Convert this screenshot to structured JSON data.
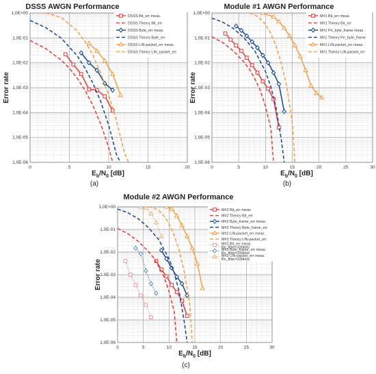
{
  "colors": {
    "red": "#e84040",
    "blue": "#1f4e8c",
    "orange": "#f5a04a",
    "grid": "#dddddd",
    "pink": "#f08080",
    "teal": "#3a7aa0",
    "tan": "#e0a060"
  },
  "chart_data": [
    {
      "type": "line",
      "title": "DSSS AWGN Performance",
      "ylabel": "Error rate",
      "xlabel_main": "E",
      "xlabel_sub1": "b",
      "xlabel_mid": "/N",
      "xlabel_sub2": "0",
      "xlabel_unit": " [dB]",
      "caption": "(a)",
      "xlim": [
        0,
        20
      ],
      "xticks": [
        0,
        5,
        10,
        15,
        20
      ],
      "yscale": "log",
      "ylim": [
        1e-06,
        1
      ],
      "yticks": [
        "1,0E-06",
        "1,0E-05",
        "1,0E-04",
        "1,0E-03",
        "1,0E-02",
        "1,0E-01",
        "1,0E+00"
      ],
      "legend_position": "top-right",
      "series": [
        {
          "name": "DSSS Bit_err meas.",
          "color": "red",
          "style": "solid",
          "marker": "square",
          "x": [
            4.5,
            5.5,
            6.5,
            7.5,
            8.5,
            9.5,
            10.5
          ],
          "y": [
            0.022,
            0.0085,
            0.0035,
            0.00085,
            0.0008,
            0.00045,
            0.00012
          ]
        },
        {
          "name": "DSSS Theory Bit_err",
          "color": "red",
          "style": "dashed",
          "marker": "none",
          "x": [
            0,
            2,
            4,
            5,
            6,
            7,
            8,
            9,
            10,
            10.5
          ],
          "y": [
            0.079,
            0.037,
            0.0125,
            0.006,
            0.0024,
            0.00077,
            0.00019,
            3.4e-05,
            3.9e-06,
            1e-06
          ]
        },
        {
          "name": "DSSS Byte_err meas.",
          "color": "blue",
          "style": "solid",
          "marker": "diamond",
          "x": [
            6.5,
            7.5,
            8.5,
            9.5,
            10.5
          ],
          "y": [
            0.025,
            0.01,
            0.005,
            0.0015,
            0.0008
          ]
        },
        {
          "name": "DSSS Theory Byte_err",
          "color": "blue",
          "style": "dashed",
          "marker": "none",
          "x": [
            0,
            2,
            4,
            6,
            7,
            8,
            9,
            10,
            11,
            11.5
          ],
          "y": [
            0.5,
            0.26,
            0.095,
            0.019,
            0.006,
            0.0015,
            0.00027,
            3.1e-05,
            2e-06,
            1e-06
          ]
        },
        {
          "name": "DSSS LIN-packet_err meas.",
          "color": "orange",
          "style": "solid",
          "marker": "triangle",
          "x": [
            7.5,
            8.5,
            9.5,
            10.5,
            11.5
          ],
          "y": [
            0.06,
            0.03,
            0.012,
            0.0035,
            0.0005
          ]
        },
        {
          "name": "DSSS Theory LIN_packet_err",
          "color": "orange",
          "style": "dashed",
          "marker": "none",
          "x": [
            2,
            4,
            6,
            7,
            8,
            9,
            10,
            11,
            12,
            12.5
          ],
          "y": [
            1,
            0.65,
            0.19,
            0.07,
            0.02,
            0.0036,
            0.0005,
            4.5e-05,
            2.5e-06,
            1e-06
          ]
        }
      ]
    },
    {
      "type": "line",
      "title": "Module #1 AWGN Performance",
      "ylabel": "Error rate",
      "xlabel_main": "E",
      "xlabel_sub1": "b",
      "xlabel_mid": "/N",
      "xlabel_sub2": "0",
      "xlabel_unit": " [dB]",
      "caption": "(b)",
      "xlim": [
        0,
        30
      ],
      "xticks": [
        0,
        5,
        10,
        15,
        20,
        25,
        30
      ],
      "yscale": "log",
      "ylim": [
        1e-06,
        1
      ],
      "yticks": [
        "1,0E-06",
        "1,0E-05",
        "1,0E-04",
        "1,0E-03",
        "1,0E-02",
        "1,0E-01",
        "1,0E+00"
      ],
      "legend_position": "top-right",
      "series": [
        {
          "name": "M#1 Bit_err meas.",
          "color": "red",
          "style": "solid",
          "marker": "square",
          "x": [
            2.5,
            3.5,
            4.5,
            5.5,
            6.5,
            7.5,
            8.5,
            9.5,
            10.5,
            11.5,
            12.5
          ],
          "y": [
            0.15,
            0.085,
            0.05,
            0.03,
            0.016,
            0.008,
            0.004,
            0.0018,
            0.0009,
            0.00035,
            2.5e-05
          ]
        },
        {
          "name": "M#1 Theory Bit_err",
          "color": "red",
          "style": "dashed",
          "marker": "none",
          "x": [
            0,
            2,
            4,
            6,
            7,
            8,
            9,
            10,
            11,
            11.5
          ],
          "y": [
            0.11,
            0.065,
            0.03,
            0.0105,
            0.0055,
            0.0023,
            0.0008,
            0.00018,
            2.3e-05,
            1e-06
          ]
        },
        {
          "name": "M#1 Pe_byte_frame meas.",
          "color": "blue",
          "style": "solid",
          "marker": "diamond",
          "x": [
            4.5,
            5.5,
            6.5,
            7.5,
            8.5,
            9.5,
            10.5,
            11.5,
            12.5,
            13.5
          ],
          "y": [
            0.3,
            0.2,
            0.12,
            0.07,
            0.04,
            0.02,
            0.01,
            0.004,
            0.0014,
            0.00011
          ]
        },
        {
          "name": "M#1 Theory Pe_byte_frame",
          "color": "blue",
          "style": "dashed",
          "marker": "none",
          "x": [
            0,
            2,
            4,
            6,
            8,
            10,
            11,
            12,
            13,
            13.5
          ],
          "y": [
            0.62,
            0.43,
            0.24,
            0.1,
            0.03,
            0.0045,
            0.0011,
            0.00015,
            7e-06,
            1e-06
          ]
        },
        {
          "name": "M#1 LIN-packet_err meas.",
          "color": "orange",
          "style": "solid",
          "marker": "triangle",
          "x": [
            9.5,
            11.5,
            12.5,
            13.5,
            14.5,
            15.5,
            16.5,
            17.5,
            18.5,
            19.5,
            20.5
          ],
          "y": [
            1,
            0.7,
            0.45,
            0.25,
            0.12,
            0.05,
            0.018,
            0.005,
            0.0012,
            0.0006,
            0.0004
          ]
        },
        {
          "name": "M#1 Theory LIN-packet_err",
          "color": "orange",
          "style": "dashed",
          "marker": "none",
          "x": [
            7,
            8,
            9,
            10,
            11,
            12,
            13,
            14,
            15,
            15.5
          ],
          "y": [
            1,
            0.85,
            0.6,
            0.35,
            0.15,
            0.045,
            0.009,
            0.001,
            4e-05,
            1e-06
          ]
        }
      ]
    },
    {
      "type": "line",
      "title": "Module #2 AWGN Performance",
      "ylabel": "Error rate",
      "xlabel_main": "E",
      "xlabel_sub1": "b",
      "xlabel_mid": "/N",
      "xlabel_sub2": "0",
      "xlabel_unit": " [dB]",
      "caption": "(c)",
      "xlim": [
        0,
        30
      ],
      "xticks": [
        0,
        5,
        10,
        15,
        20,
        25,
        30
      ],
      "yscale": "log",
      "ylim": [
        1e-06,
        1
      ],
      "yticks": [
        "1,0E-06",
        "1,0E-05",
        "1,0E-04",
        "1,0E-03",
        "1,0E-02",
        "1,0E-01",
        "1,0E+00"
      ],
      "legend_position": "top-right",
      "series": [
        {
          "name": "M#2 Bit_err meas.",
          "color": "red",
          "style": "solid",
          "marker": "square",
          "x": [
            7.5,
            8.5,
            9.5,
            10.5,
            11.5,
            12.5,
            13.5
          ],
          "y": [
            0.004,
            0.0017,
            0.00085,
            0.00035,
            0.00017,
            7e-05,
            1.5e-05
          ]
        },
        {
          "name": "M#2 Theory Bit_err",
          "color": "red",
          "style": "dashed",
          "marker": "none",
          "x": [
            0,
            2,
            4,
            6,
            7,
            8,
            9,
            10,
            11,
            11.5
          ],
          "y": [
            0.11,
            0.065,
            0.03,
            0.0105,
            0.0055,
            0.0023,
            0.0008,
            0.00018,
            2.3e-05,
            1e-06
          ]
        },
        {
          "name": "M#2 Byte_frame_err meas.",
          "color": "blue",
          "style": "solid",
          "marker": "diamond",
          "x": [
            8.5,
            9.5,
            10.5,
            11.5,
            12.5,
            13.5
          ],
          "y": [
            0.012,
            0.005,
            0.002,
            0.0008,
            0.0004,
            0.00012
          ]
        },
        {
          "name": "M#2 Theory Byte_frame_err",
          "color": "blue",
          "style": "dashed",
          "marker": "none",
          "x": [
            0,
            2,
            4,
            6,
            8,
            10,
            11,
            12,
            13,
            13.5
          ],
          "y": [
            0.8,
            0.55,
            0.3,
            0.12,
            0.035,
            0.005,
            0.0012,
            0.00016,
            7e-06,
            1e-06
          ]
        },
        {
          "name": "M#2 LIN-packet_err meas.",
          "color": "orange",
          "style": "solid",
          "marker": "triangle",
          "x": [
            9.5,
            10.5,
            11.5,
            12.5,
            13.5,
            14.5,
            15.5,
            16.5
          ],
          "y": [
            1,
            0.8,
            0.4,
            0.15,
            0.05,
            0.015,
            0.003,
            0.00025
          ]
        },
        {
          "name": "M#2 Theory LIN-packet_err",
          "color": "orange",
          "style": "dashed",
          "marker": "none",
          "x": [
            6,
            7,
            8,
            9,
            10,
            11,
            12,
            13,
            14,
            14.5
          ],
          "y": [
            1,
            0.9,
            0.7,
            0.4,
            0.18,
            0.055,
            0.011,
            0.0012,
            5e-05,
            1e-06
          ]
        },
        {
          "name": "M#2 Bit_err meas. Bn_filter=330kHz",
          "color": "pink",
          "style": "dotted",
          "marker": "square-open",
          "x": [
            1.5,
            2.5,
            3.5,
            4.5,
            5.5,
            6.5
          ],
          "y": [
            0.004,
            0.001,
            0.00035,
            0.00012,
            4.5e-05,
            1.3e-05
          ]
        },
        {
          "name": "M#2 Byte_frame_err meas. Bn_filter=330kHz",
          "color": "teal",
          "style": "dotted",
          "marker": "diamond-open",
          "x": [
            3.5,
            4.5,
            5.5,
            6.5,
            7.5
          ],
          "y": [
            0.015,
            0.0085,
            0.0015,
            0.0004,
            0.00015
          ]
        },
        {
          "name": "M#2 LIN-packet_err meas. Bn_filter=330kHz",
          "color": "tan",
          "style": "dotted",
          "marker": "triangle-open",
          "x": [
            4.5,
            5.5,
            6.5,
            7.5,
            8.5
          ],
          "y": [
            1,
            0.9,
            0.5,
            0.2,
            0.05
          ]
        }
      ]
    }
  ]
}
